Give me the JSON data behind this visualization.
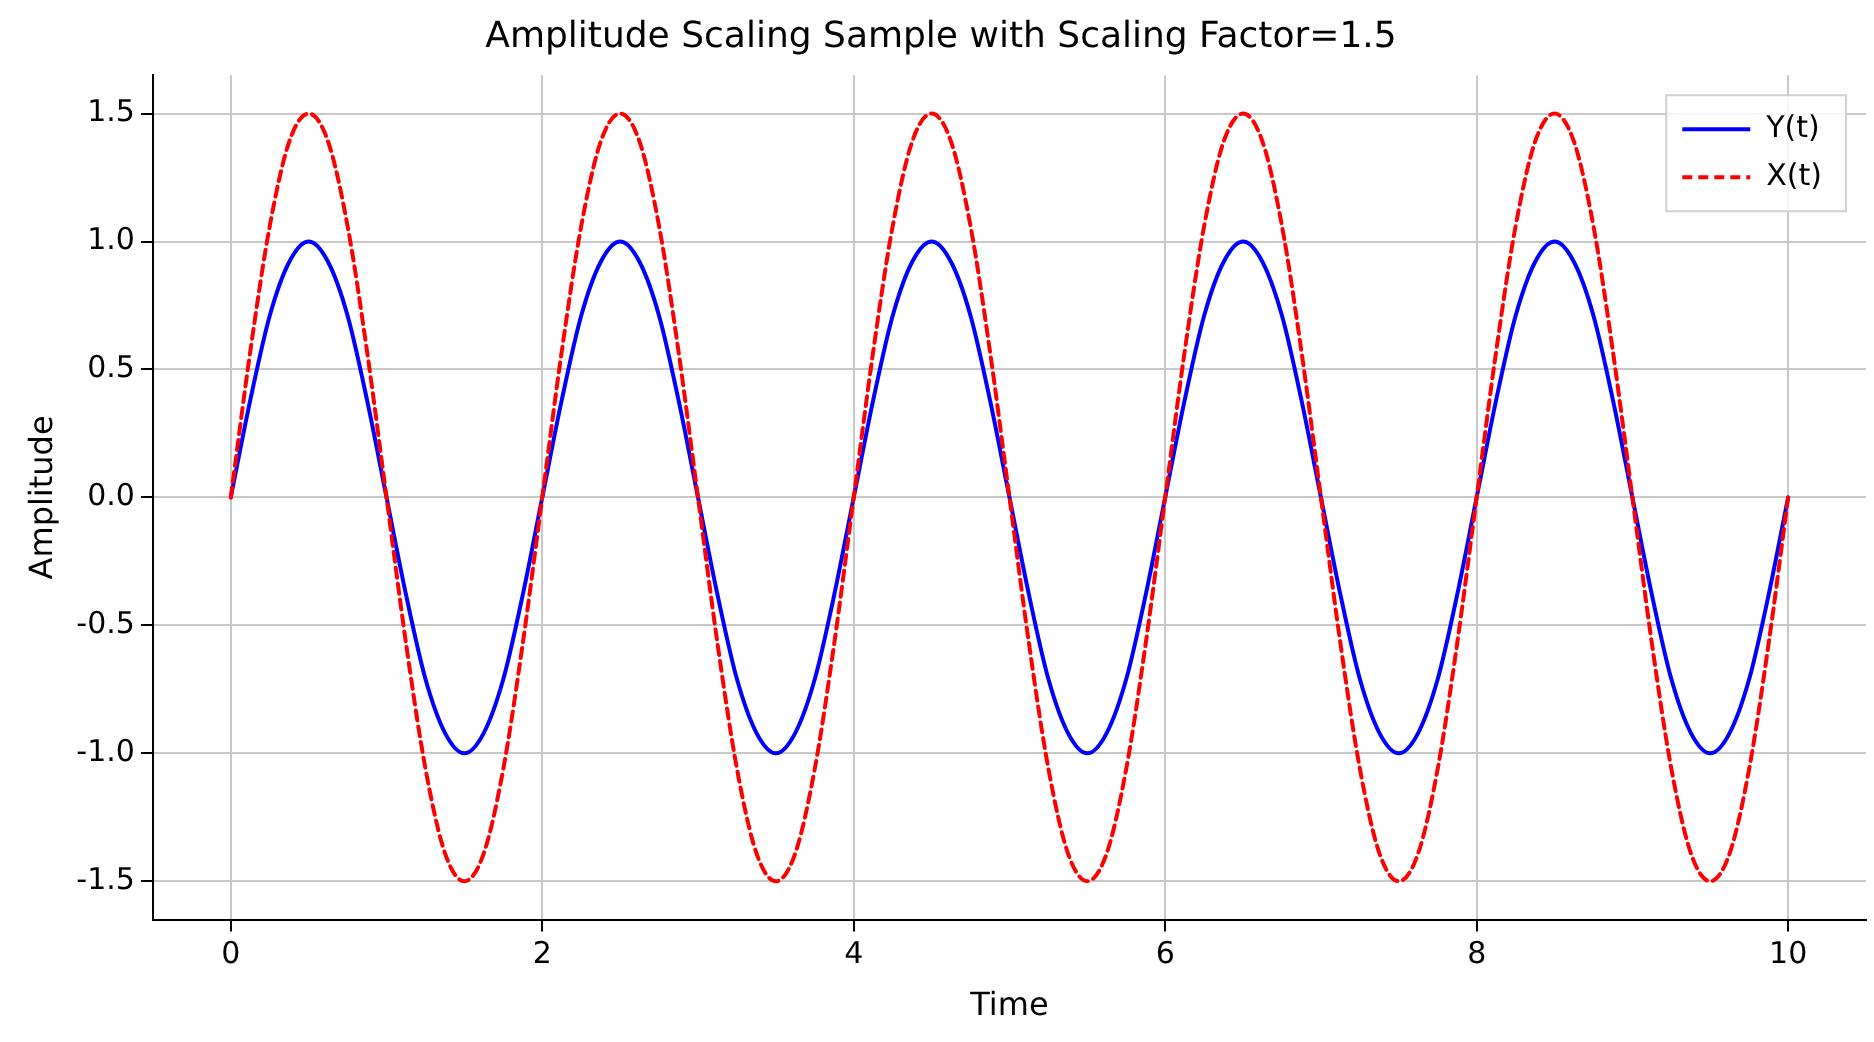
{
  "chart_data": {
    "type": "line",
    "title": "Amplitude Scaling Sample with Scaling Factor=1.5",
    "xlabel": "Time",
    "ylabel": "Amplitude",
    "x": [
      0,
      0.125,
      0.25,
      0.375,
      0.5,
      0.625,
      0.75,
      0.875,
      1,
      1.125,
      1.25,
      1.375,
      1.5,
      1.625,
      1.75,
      1.875,
      2,
      2.125,
      2.25,
      2.375,
      2.5,
      2.625,
      2.75,
      2.875,
      3,
      3.125,
      3.25,
      3.375,
      3.5,
      3.625,
      3.75,
      3.875,
      4,
      4.125,
      4.25,
      4.375,
      4.5,
      4.625,
      4.75,
      4.875,
      5,
      5.125,
      5.25,
      5.375,
      5.5,
      5.625,
      5.75,
      5.875,
      6,
      6.125,
      6.25,
      6.375,
      6.5,
      6.625,
      6.75,
      6.875,
      7,
      7.125,
      7.25,
      7.375,
      7.5,
      7.625,
      7.75,
      7.875,
      8,
      8.125,
      8.25,
      8.375,
      8.5,
      8.625,
      8.75,
      8.875,
      9,
      9.125,
      9.25,
      9.375,
      9.5,
      9.625,
      9.75,
      9.875,
      10
    ],
    "series": [
      {
        "name": "Y(t)",
        "color": "#0000ff",
        "line_style": "solid",
        "values": [
          0,
          0.38,
          0.71,
          0.92,
          1,
          0.92,
          0.71,
          0.38,
          0,
          -0.38,
          -0.71,
          -0.92,
          -1,
          -0.92,
          -0.71,
          -0.38,
          0,
          0.38,
          0.71,
          0.92,
          1,
          0.92,
          0.71,
          0.38,
          0,
          -0.38,
          -0.71,
          -0.92,
          -1,
          -0.92,
          -0.71,
          -0.38,
          0,
          0.38,
          0.71,
          0.92,
          1,
          0.92,
          0.71,
          0.38,
          0,
          -0.38,
          -0.71,
          -0.92,
          -1,
          -0.92,
          -0.71,
          -0.38,
          0,
          0.38,
          0.71,
          0.92,
          1,
          0.92,
          0.71,
          0.38,
          0,
          -0.38,
          -0.71,
          -0.92,
          -1,
          -0.92,
          -0.71,
          -0.38,
          0,
          0.38,
          0.71,
          0.92,
          1,
          0.92,
          0.71,
          0.38,
          0,
          -0.38,
          -0.71,
          -0.92,
          -1,
          -0.92,
          -0.71,
          -0.38,
          0
        ]
      },
      {
        "name": "X(t)",
        "color": "#ff0000",
        "line_style": "dashed",
        "values": [
          0,
          0.57,
          1.06,
          1.39,
          1.5,
          1.39,
          1.06,
          0.57,
          0,
          -0.57,
          -1.06,
          -1.39,
          -1.5,
          -1.39,
          -1.06,
          -0.57,
          0,
          0.57,
          1.06,
          1.39,
          1.5,
          1.39,
          1.06,
          0.57,
          0,
          -0.57,
          -1.06,
          -1.39,
          -1.5,
          -1.39,
          -1.06,
          -0.57,
          0,
          0.57,
          1.06,
          1.39,
          1.5,
          1.39,
          1.06,
          0.57,
          0,
          -0.57,
          -1.06,
          -1.39,
          -1.5,
          -1.39,
          -1.06,
          -0.57,
          0,
          0.57,
          1.06,
          1.39,
          1.5,
          1.39,
          1.06,
          0.57,
          0,
          -0.57,
          -1.06,
          -1.39,
          -1.5,
          -1.39,
          -1.06,
          -0.57,
          0,
          0.57,
          1.06,
          1.39,
          1.5,
          1.39,
          1.06,
          0.57,
          0,
          -0.57,
          -1.06,
          -1.39,
          -1.5,
          -1.39,
          -1.06,
          -0.57,
          0
        ]
      }
    ],
    "xlim": [
      -0.5,
      10.5
    ],
    "xticks": [
      0,
      2,
      4,
      6,
      8,
      10
    ],
    "ylim": [
      -1.65,
      1.65
    ],
    "yticks": [
      -1.5,
      {
        "value": -1,
        "label": "-1.0"
      },
      -0.5,
      {
        "value": 0,
        "label": "0.0"
      },
      0.5,
      {
        "value": 1,
        "label": "1.0"
      },
      1.5
    ],
    "grid": true,
    "legend": "top right",
    "marker": "none"
  }
}
